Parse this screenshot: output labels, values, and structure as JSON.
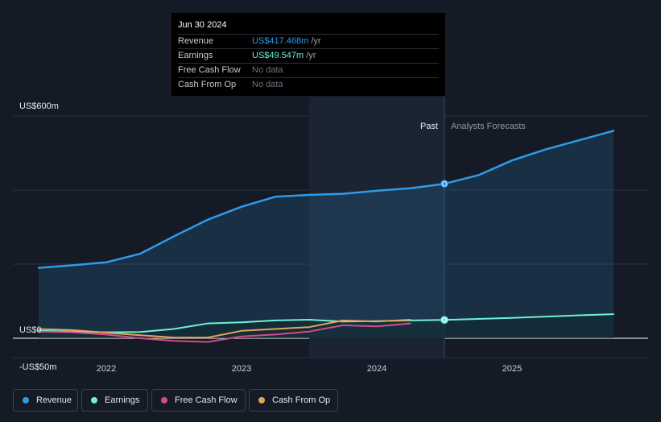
{
  "tooltip": {
    "date": "Jun 30 2024",
    "rows": [
      {
        "label": "Revenue",
        "value": "US$417.468m",
        "unit": "/yr",
        "color": "#2f9be8"
      },
      {
        "label": "Earnings",
        "value": "US$49.547m",
        "unit": "/yr",
        "color": "#6ff0d8"
      },
      {
        "label": "Free Cash Flow",
        "value": "No data",
        "unit": "",
        "color": "#6b7280"
      },
      {
        "label": "Cash From Op",
        "value": "No data",
        "unit": "",
        "color": "#6b7280"
      }
    ]
  },
  "labels": {
    "past": "Past",
    "forecast": "Analysts Forecasts"
  },
  "legend": [
    {
      "label": "Revenue",
      "color": "#2f9be8"
    },
    {
      "label": "Earnings",
      "color": "#6ff0d8"
    },
    {
      "label": "Free Cash Flow",
      "color": "#d64a8a"
    },
    {
      "label": "Cash From Op",
      "color": "#e2a35a"
    }
  ],
  "chart_data": {
    "type": "line",
    "title": "",
    "xlabel": "",
    "ylabel": "",
    "ylim": [
      -50,
      600
    ],
    "y_tick_labels": [
      "US$600m",
      "US$0",
      "-US$50m"
    ],
    "x_tick_labels": [
      "2022",
      "2023",
      "2024",
      "2025"
    ],
    "highlight_date": 2024.5,
    "past_region_start": 2023.5,
    "series": [
      {
        "name": "Revenue",
        "color": "#2f9be8",
        "x": [
          2021.5,
          2021.75,
          2022.0,
          2022.25,
          2022.5,
          2022.75,
          2023.0,
          2023.25,
          2023.5,
          2023.75,
          2024.0,
          2024.25,
          2024.5,
          2024.75,
          2025.0,
          2025.25,
          2025.5,
          2025.75
        ],
        "y": [
          190,
          197,
          205,
          228,
          275,
          320,
          355,
          382,
          387,
          390,
          398,
          405,
          417,
          440,
          480,
          510,
          535,
          560
        ]
      },
      {
        "name": "Earnings",
        "color": "#6ff0d8",
        "x": [
          2021.5,
          2021.75,
          2022.0,
          2022.25,
          2022.5,
          2022.75,
          2023.0,
          2023.25,
          2023.5,
          2023.75,
          2024.0,
          2024.25,
          2024.5,
          2025.0,
          2025.5,
          2025.75
        ],
        "y": [
          20,
          18,
          16,
          17,
          25,
          40,
          43,
          48,
          50,
          45,
          46,
          48,
          49.5,
          55,
          62,
          65
        ]
      },
      {
        "name": "Free Cash Flow",
        "color": "#d64a8a",
        "x": [
          2021.5,
          2021.75,
          2022.0,
          2022.25,
          2022.5,
          2022.75,
          2023.0,
          2023.25,
          2023.5,
          2023.75,
          2024.0,
          2024.25
        ],
        "y": [
          18,
          16,
          10,
          0,
          -7,
          -10,
          5,
          10,
          18,
          35,
          32,
          40
        ]
      },
      {
        "name": "Cash From Op",
        "color": "#e2a35a",
        "x": [
          2021.5,
          2021.75,
          2022.0,
          2022.25,
          2022.5,
          2022.75,
          2023.0,
          2023.25,
          2023.5,
          2023.75,
          2024.0,
          2024.25
        ],
        "y": [
          25,
          22,
          15,
          8,
          2,
          2,
          20,
          25,
          30,
          48,
          45,
          50
        ]
      }
    ]
  }
}
